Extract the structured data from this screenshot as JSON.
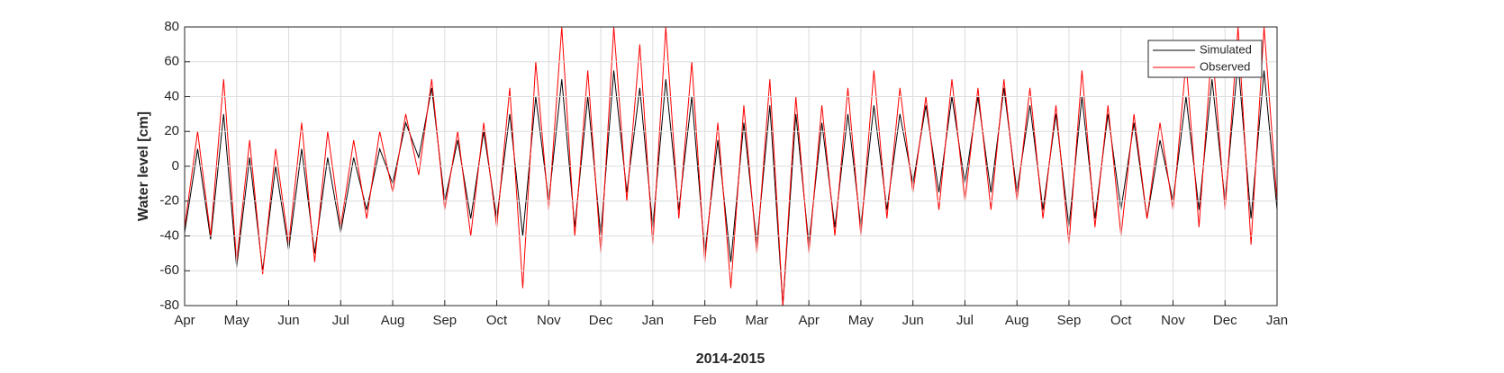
{
  "chart_data": {
    "type": "line",
    "xlabel": "2014-2015",
    "ylabel": "Water level [cm]",
    "x": [
      0,
      0.25,
      0.5,
      0.75,
      1,
      1.25,
      1.5,
      1.75,
      2,
      2.25,
      2.5,
      2.75,
      3,
      3.25,
      3.5,
      3.75,
      4,
      4.25,
      4.5,
      4.75,
      5,
      5.25,
      5.5,
      5.75,
      6,
      6.25,
      6.5,
      6.75,
      7,
      7.25,
      7.5,
      7.75,
      8,
      8.25,
      8.5,
      8.75,
      9,
      9.25,
      9.5,
      9.75,
      10,
      10.25,
      10.5,
      10.75,
      11,
      11.25,
      11.5,
      11.75,
      12,
      12.25,
      12.5,
      12.75,
      13,
      13.25,
      13.5,
      13.75,
      14,
      14.25,
      14.5,
      14.75,
      15,
      15.25,
      15.5,
      15.75,
      16,
      16.25,
      16.5,
      16.75,
      17,
      17.25,
      17.5,
      17.75,
      18,
      18.25,
      18.5,
      18.75,
      19,
      19.25,
      19.5,
      19.75,
      20,
      20.25,
      20.5,
      20.75,
      21
    ],
    "series": [
      {
        "name": "Simulated",
        "color": "#000000",
        "values": [
          -38,
          10,
          -42,
          30,
          -58,
          5,
          -60,
          0,
          -48,
          10,
          -50,
          5,
          -38,
          5,
          -25,
          10,
          -10,
          25,
          5,
          45,
          -20,
          15,
          -30,
          20,
          -30,
          30,
          -40,
          40,
          -20,
          50,
          -35,
          40,
          -40,
          55,
          -15,
          45,
          -35,
          50,
          -25,
          40,
          -50,
          15,
          -55,
          25,
          -45,
          35,
          -80,
          30,
          -45,
          25,
          -35,
          30,
          -35,
          35,
          -25,
          30,
          -10,
          35,
          -15,
          40,
          -10,
          40,
          -15,
          45,
          -15,
          35,
          -25,
          30,
          -35,
          40,
          -30,
          30,
          -25,
          25,
          -30,
          15,
          -20,
          40,
          -25,
          50,
          -20,
          60,
          -30,
          55,
          -25
        ]
      },
      {
        "name": "Observed",
        "color": "#ff0000",
        "values": [
          -35,
          20,
          -40,
          50,
          -55,
          15,
          -62,
          10,
          -45,
          25,
          -55,
          20,
          -35,
          15,
          -30,
          20,
          -15,
          30,
          -5,
          50,
          -25,
          20,
          -40,
          25,
          -35,
          45,
          -70,
          60,
          -25,
          80,
          -40,
          55,
          -50,
          80,
          -20,
          70,
          -45,
          80,
          -30,
          60,
          -55,
          25,
          -70,
          35,
          -50,
          50,
          -80,
          40,
          -50,
          35,
          -40,
          45,
          -40,
          55,
          -30,
          45,
          -15,
          40,
          -25,
          50,
          -20,
          45,
          -25,
          50,
          -20,
          45,
          -30,
          35,
          -45,
          55,
          -35,
          35,
          -40,
          30,
          -30,
          25,
          -25,
          60,
          -35,
          70,
          -25,
          80,
          -45,
          80,
          -20
        ]
      }
    ],
    "xlim": [
      0,
      21
    ],
    "xticks": [
      {
        "value": 0,
        "label": "Apr"
      },
      {
        "value": 1,
        "label": "May"
      },
      {
        "value": 2,
        "label": "Jun"
      },
      {
        "value": 3,
        "label": "Jul"
      },
      {
        "value": 4,
        "label": "Aug"
      },
      {
        "value": 5,
        "label": "Sep"
      },
      {
        "value": 6,
        "label": "Oct"
      },
      {
        "value": 7,
        "label": "Nov"
      },
      {
        "value": 8,
        "label": "Dec"
      },
      {
        "value": 9,
        "label": "Jan"
      },
      {
        "value": 10,
        "label": "Feb"
      },
      {
        "value": 11,
        "label": "Mar"
      },
      {
        "value": 12,
        "label": "Apr"
      },
      {
        "value": 13,
        "label": "May"
      },
      {
        "value": 14,
        "label": "Jun"
      },
      {
        "value": 15,
        "label": "Jul"
      },
      {
        "value": 16,
        "label": "Aug"
      },
      {
        "value": 17,
        "label": "Sep"
      },
      {
        "value": 18,
        "label": "Oct"
      },
      {
        "value": 19,
        "label": "Nov"
      },
      {
        "value": 20,
        "label": "Dec"
      },
      {
        "value": 21,
        "label": "Jan"
      }
    ],
    "ylim": [
      -80,
      80
    ],
    "yticks": [
      -80,
      -60,
      -40,
      -20,
      0,
      20,
      40,
      60,
      80
    ],
    "grid": true,
    "legend": "top-right"
  }
}
